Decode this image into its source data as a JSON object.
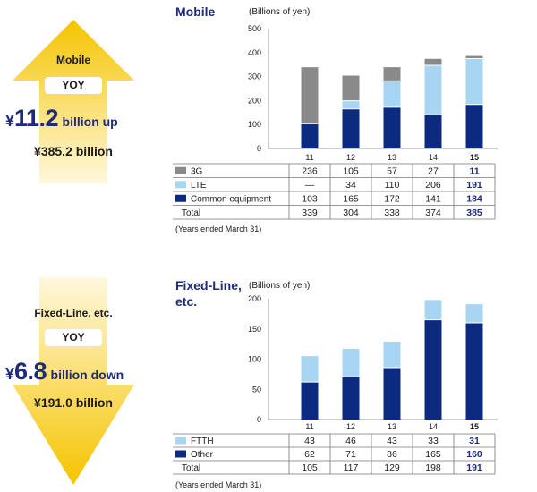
{
  "summary": {
    "mobile": {
      "label": "Mobile",
      "yoy": "YOY",
      "currency": "¥",
      "change": "11.2",
      "change_unit": "billion up",
      "total": "¥385.2 billion",
      "direction": "up"
    },
    "fixed": {
      "label": "Fixed-Line, etc.",
      "yoy": "YOY",
      "currency": "¥",
      "change": "6.8",
      "change_unit": "billion down",
      "total": "¥191.0 billion",
      "direction": "down"
    }
  },
  "colors": {
    "navy": "#0c2a80",
    "light_blue": "#a8d6f2",
    "gray": "#8a8a8a",
    "title_blue": "#1d2b7a",
    "arrow_yellow": "#f5c400",
    "arrow_light": "#fff6cc"
  },
  "chart_data": [
    {
      "type": "bar",
      "stacked": true,
      "title": "Mobile",
      "ylabel": "(Billions of yen)",
      "ylim": [
        0,
        500
      ],
      "yticks": [
        0,
        100,
        200,
        300,
        400,
        500
      ],
      "categories": [
        "11",
        "12",
        "13",
        "14",
        "15"
      ],
      "series": [
        {
          "name": "Common equipment",
          "values": [
            103,
            165,
            172,
            141,
            184
          ],
          "color": "#0c2a80"
        },
        {
          "name": "LTE",
          "values": [
            null,
            34,
            110,
            206,
            191
          ],
          "color": "#a8d6f2"
        },
        {
          "name": "3G",
          "values": [
            236,
            105,
            57,
            27,
            11
          ],
          "color": "#8a8a8a"
        }
      ],
      "table": {
        "rows": [
          {
            "name": "3G",
            "swatch": "#8a8a8a",
            "cells": [
              "236",
              "105",
              "57",
              "27",
              "11"
            ]
          },
          {
            "name": "LTE",
            "swatch": "#a8d6f2",
            "cells": [
              "—",
              "34",
              "110",
              "206",
              "191"
            ]
          },
          {
            "name": "Common equipment",
            "swatch": "#0c2a80",
            "cells": [
              "103",
              "165",
              "172",
              "141",
              "184"
            ]
          },
          {
            "name": "Total",
            "swatch": null,
            "cells": [
              "339",
              "304",
              "338",
              "374",
              "385"
            ]
          }
        ]
      },
      "note": "(Years ended March 31)"
    },
    {
      "type": "bar",
      "stacked": true,
      "title": "Fixed-Line, etc.",
      "ylabel": "(Billions of yen)",
      "ylim": [
        0,
        200
      ],
      "yticks": [
        0,
        50,
        100,
        150,
        200
      ],
      "categories": [
        "11",
        "12",
        "13",
        "14",
        "15"
      ],
      "series": [
        {
          "name": "Other",
          "values": [
            62,
            71,
            86,
            165,
            160
          ],
          "color": "#0c2a80"
        },
        {
          "name": "FTTH",
          "values": [
            43,
            46,
            43,
            33,
            31
          ],
          "color": "#a8d6f2"
        }
      ],
      "table": {
        "rows": [
          {
            "name": "FTTH",
            "swatch": "#a8d6f2",
            "cells": [
              "43",
              "46",
              "43",
              "33",
              "31"
            ]
          },
          {
            "name": "Other",
            "swatch": "#0c2a80",
            "cells": [
              "62",
              "71",
              "86",
              "165",
              "160"
            ]
          },
          {
            "name": "Total",
            "swatch": null,
            "cells": [
              "105",
              "117",
              "129",
              "198",
              "191"
            ]
          }
        ]
      },
      "note": "(Years ended March 31)"
    }
  ]
}
